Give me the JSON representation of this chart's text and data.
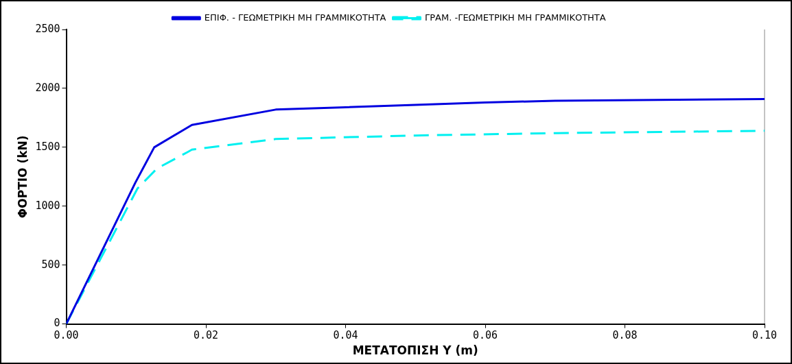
{
  "chart_data": {
    "type": "line",
    "xlabel": "ΜΕΤΑΤΟΠΙΣΗ Υ (m)",
    "ylabel": "ΦΟΡΤΙΟ (kN)",
    "xlim": [
      0,
      0.1
    ],
    "ylim": [
      0,
      2500
    ],
    "xticks": [
      {
        "value": 0,
        "label": "0.00"
      },
      {
        "value": 0.02,
        "label": "0.02"
      },
      {
        "value": 0.04,
        "label": "0.04"
      },
      {
        "value": 0.06,
        "label": "0.06"
      },
      {
        "value": 0.08,
        "label": "0.08"
      },
      {
        "value": 0.1,
        "label": "0.10"
      }
    ],
    "yticks": [
      0,
      500,
      1000,
      1500,
      2000,
      2500
    ],
    "grid": false,
    "legend": "top",
    "marker": "none",
    "series": [
      {
        "name": "ΕΠΙΦ. - ΓΕΩΜΕΤΡΙΚΗ ΜΗ ΓΡΑΜΜΙΚΟΤΗΤΑ",
        "color": "#0000e0",
        "line_style": "solid",
        "x": [
          0,
          0.0099,
          0.0126,
          0.018,
          0.03,
          0.04,
          0.05,
          0.06,
          0.07,
          0.1
        ],
        "values": [
          0,
          1200,
          1500,
          1690,
          1820,
          1840,
          1860,
          1880,
          1895,
          1910
        ]
      },
      {
        "name": "ΓΡΑΜ. -ΓΕΩΜΕΤΡΙΚΗ ΜΗ ΓΡΑΜΜΙΚΟΤΗΤΑ",
        "color": "#00f0f0",
        "line_style": "dashed",
        "x": [
          0,
          0.0102,
          0.013,
          0.0174,
          0.018,
          0.03,
          0.05,
          0.07,
          0.1
        ],
        "values": [
          0,
          1150,
          1320,
          1460,
          1480,
          1570,
          1600,
          1620,
          1640
        ]
      }
    ]
  }
}
